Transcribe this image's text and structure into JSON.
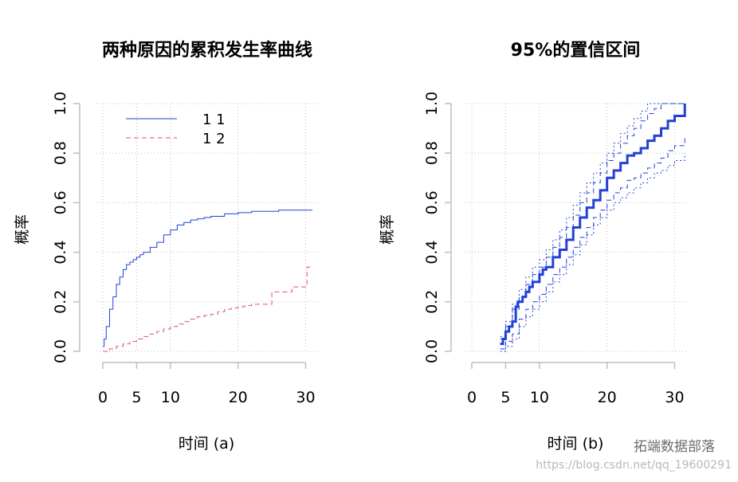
{
  "colors": {
    "blue": "#2240D8",
    "red": "#DF536B",
    "grid": "#BEBEBE",
    "axis": "#BEBEBE"
  },
  "watermark": {
    "text": "https://blog.csdn.net/qq_19600291",
    "brand": "拓端数据部落"
  },
  "chart_data": [
    {
      "type": "line",
      "step": true,
      "title": "两种原因的累积发生率曲线",
      "xlabel": "时间 (a)",
      "ylabel": "概率",
      "xlim": [
        0,
        31
      ],
      "ylim": [
        0,
        1.0
      ],
      "xticks": [
        0,
        5,
        10,
        20,
        30
      ],
      "yticks": [
        0.0,
        0.2,
        0.4,
        0.6,
        0.8,
        1.0
      ],
      "ytick_labels": [
        "0.0",
        "0.2",
        "0.4",
        "0.6",
        "0.8",
        "1.0"
      ],
      "grid": true,
      "legend_position": "top-left",
      "series": [
        {
          "name": "1 1",
          "color": "#2240D8",
          "dash": "solid",
          "x": [
            0,
            0.2,
            0.5,
            1,
            1.5,
            2,
            2.5,
            3,
            3.5,
            4,
            4.5,
            5,
            5.5,
            6,
            7,
            8,
            9,
            10,
            11,
            12,
            13,
            14,
            15,
            16,
            18,
            20,
            22,
            24,
            26,
            28,
            30,
            31
          ],
          "y": [
            0.02,
            0.05,
            0.1,
            0.17,
            0.22,
            0.27,
            0.3,
            0.33,
            0.35,
            0.36,
            0.37,
            0.38,
            0.39,
            0.4,
            0.42,
            0.44,
            0.47,
            0.49,
            0.51,
            0.52,
            0.53,
            0.535,
            0.54,
            0.545,
            0.555,
            0.56,
            0.565,
            0.565,
            0.57,
            0.57,
            0.57,
            0.57
          ]
        },
        {
          "name": "1 2",
          "color": "#DF536B",
          "dash": "dashed",
          "x": [
            0,
            1,
            2,
            3,
            4,
            5,
            6,
            7,
            8,
            9,
            10,
            11,
            12,
            13,
            14,
            15,
            16,
            17,
            18,
            19,
            20,
            21,
            22,
            25,
            26,
            28,
            30,
            30.2,
            31
          ],
          "y": [
            0.0,
            0.01,
            0.02,
            0.03,
            0.04,
            0.05,
            0.06,
            0.07,
            0.08,
            0.09,
            0.1,
            0.11,
            0.12,
            0.13,
            0.14,
            0.145,
            0.15,
            0.16,
            0.17,
            0.175,
            0.18,
            0.185,
            0.19,
            0.24,
            0.24,
            0.26,
            0.26,
            0.34,
            0.34
          ]
        }
      ]
    },
    {
      "type": "line",
      "step": true,
      "title": "95%的置信区间",
      "xlabel": "时间 (b)",
      "ylabel": "概率",
      "xlim": [
        0,
        31
      ],
      "ylim": [
        0,
        1.0
      ],
      "xticks": [
        0,
        5,
        10,
        20,
        30
      ],
      "yticks": [
        0.0,
        0.2,
        0.4,
        0.6,
        0.8,
        1.0
      ],
      "ytick_labels": [
        "0.0",
        "0.2",
        "0.4",
        "0.6",
        "0.8",
        "1.0"
      ],
      "grid": true,
      "series": [
        {
          "role": "estimate",
          "color": "#2240D8",
          "dash": "solid",
          "width": 3,
          "x": [
            4.2,
            4.6,
            5,
            5.5,
            6,
            6.5,
            6.8,
            7.5,
            8,
            8.5,
            9,
            10,
            10.5,
            11,
            12,
            13,
            14,
            15,
            16,
            17,
            18,
            19,
            20,
            21,
            22,
            23,
            24,
            25,
            26,
            27,
            28,
            29,
            30,
            31,
            31.5
          ],
          "y": [
            0.03,
            0.05,
            0.08,
            0.1,
            0.12,
            0.18,
            0.2,
            0.22,
            0.24,
            0.26,
            0.28,
            0.31,
            0.33,
            0.34,
            0.38,
            0.41,
            0.45,
            0.5,
            0.54,
            0.58,
            0.61,
            0.65,
            0.7,
            0.73,
            0.76,
            0.79,
            0.8,
            0.82,
            0.85,
            0.87,
            0.9,
            0.93,
            0.95,
            0.95,
            1.0
          ]
        },
        {
          "role": "upper_inner",
          "color": "#2240D8",
          "dash": "dashed",
          "width": 1,
          "x": [
            4.2,
            5,
            6,
            7,
            8,
            9,
            10,
            11,
            12,
            13,
            14,
            15,
            16,
            17,
            18,
            19,
            20,
            21,
            22,
            23,
            24,
            25,
            26,
            27,
            28,
            29,
            30,
            31.5
          ],
          "y": [
            0.05,
            0.1,
            0.17,
            0.22,
            0.27,
            0.31,
            0.34,
            0.38,
            0.42,
            0.46,
            0.5,
            0.55,
            0.6,
            0.64,
            0.68,
            0.72,
            0.77,
            0.8,
            0.84,
            0.87,
            0.9,
            0.93,
            0.96,
            0.98,
            1.0,
            1.0,
            1.0,
            1.0
          ]
        },
        {
          "role": "lower_inner",
          "color": "#2240D8",
          "dash": "dashed",
          "width": 1,
          "x": [
            4.2,
            5,
            6,
            7,
            8,
            9,
            10,
            11,
            12,
            13,
            14,
            15,
            16,
            17,
            18,
            19,
            20,
            21,
            22,
            23,
            24,
            25,
            26,
            27,
            28,
            29,
            30,
            31,
            31.5
          ],
          "y": [
            0.01,
            0.04,
            0.07,
            0.13,
            0.17,
            0.2,
            0.23,
            0.27,
            0.31,
            0.34,
            0.38,
            0.42,
            0.46,
            0.5,
            0.54,
            0.57,
            0.61,
            0.64,
            0.66,
            0.69,
            0.7,
            0.72,
            0.74,
            0.76,
            0.78,
            0.81,
            0.83,
            0.83,
            0.87
          ]
        },
        {
          "role": "upper_outer",
          "color": "#2240D8",
          "dash": "dotted",
          "width": 1,
          "x": [
            4.2,
            5,
            6,
            7,
            8,
            9,
            10,
            11,
            12,
            13,
            14,
            15,
            16,
            17,
            18,
            19,
            20,
            21,
            22,
            23,
            24,
            25,
            26,
            27,
            28,
            29,
            30,
            31.5
          ],
          "y": [
            0.06,
            0.12,
            0.19,
            0.25,
            0.3,
            0.34,
            0.37,
            0.41,
            0.45,
            0.49,
            0.54,
            0.59,
            0.64,
            0.68,
            0.72,
            0.76,
            0.8,
            0.84,
            0.88,
            0.91,
            0.94,
            0.97,
            1.0,
            1.0,
            1.0,
            1.0,
            1.0,
            1.0
          ]
        },
        {
          "role": "lower_outer",
          "color": "#2240D8",
          "dash": "dotted",
          "width": 1,
          "x": [
            4.2,
            5,
            6,
            7,
            8,
            9,
            10,
            11,
            12,
            13,
            14,
            15,
            16,
            17,
            18,
            19,
            20,
            21,
            22,
            23,
            24,
            25,
            26,
            27,
            28,
            29,
            30,
            31,
            31.5
          ],
          "y": [
            0.0,
            0.02,
            0.05,
            0.1,
            0.14,
            0.17,
            0.2,
            0.24,
            0.28,
            0.31,
            0.35,
            0.39,
            0.43,
            0.47,
            0.51,
            0.54,
            0.57,
            0.6,
            0.62,
            0.64,
            0.66,
            0.68,
            0.7,
            0.72,
            0.73,
            0.75,
            0.77,
            0.77,
            0.8
          ]
        }
      ]
    }
  ]
}
